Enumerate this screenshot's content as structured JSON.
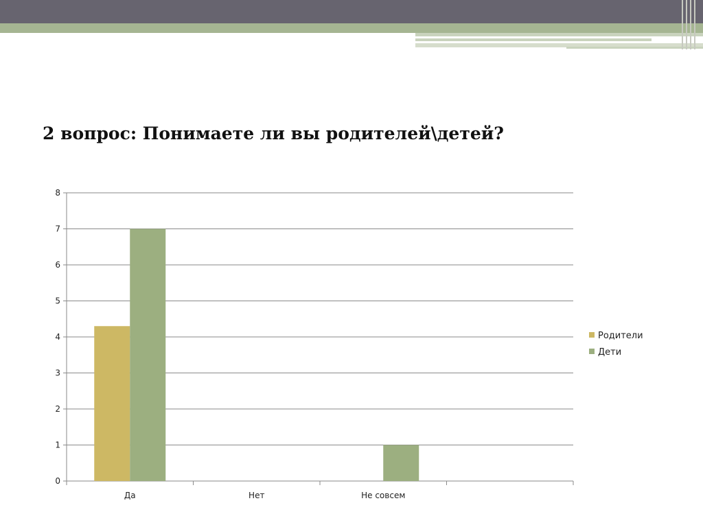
{
  "slide": {
    "title": "2 вопрос: Понимаете ли вы родителей\\детей?",
    "colors": {
      "top_bar": "#67646f",
      "accent_green": "#a5b592",
      "stripe_light": "#c9d3bd"
    }
  },
  "chart_data": {
    "type": "bar",
    "title": "2 вопрос: Понимаете ли вы родителей\\детей?",
    "categories": [
      "Да",
      "Нет",
      "Не совсем",
      ""
    ],
    "series": [
      {
        "name": "Родители",
        "color": "#cdb864",
        "values": [
          4.3,
          0,
          0,
          0
        ]
      },
      {
        "name": "Дети",
        "color": "#9caf80",
        "values": [
          7,
          0,
          1,
          0
        ]
      }
    ],
    "ylim": [
      0,
      8
    ],
    "yticks": [
      "0",
      "1",
      "2",
      "3",
      "4",
      "5",
      "6",
      "7",
      "8"
    ],
    "xlabel": "",
    "ylabel": "",
    "grid": true,
    "legend_position": "right"
  }
}
